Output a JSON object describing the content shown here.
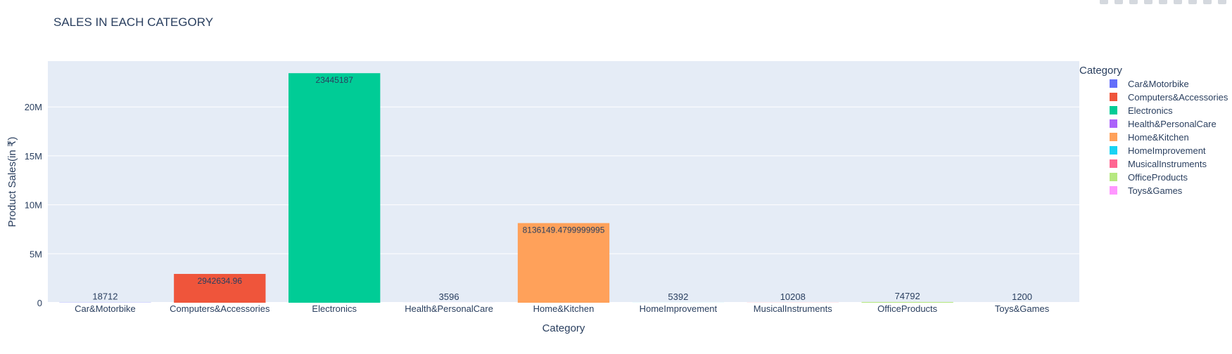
{
  "chart_data": {
    "type": "bar",
    "title": "SALES IN EACH CATEGORY",
    "xlabel": "Category",
    "ylabel": "Product Sales(in ₹)",
    "categories": [
      "Car&Motorbike",
      "Computers&Accessories",
      "Electronics",
      "Health&PersonalCare",
      "Home&Kitchen",
      "HomeImprovement",
      "MusicalInstruments",
      "OfficeProducts",
      "Toys&Games"
    ],
    "values": [
      18712,
      2942634.96,
      23445187,
      3596,
      8136149.4799999995,
      5392,
      10208,
      74792,
      1200
    ],
    "value_labels": [
      "18712",
      "2942634.96",
      "23445187",
      "3596",
      "8136149.4799999995",
      "5392",
      "10208",
      "74792",
      "1200"
    ],
    "colors": [
      "#636efa",
      "#EF553B",
      "#00cc96",
      "#ab63fa",
      "#FFA15A",
      "#19d3f3",
      "#FF6692",
      "#B6E880",
      "#FF97FF"
    ],
    "ylim": [
      0,
      24678670
    ],
    "yticks": [
      0,
      5000000,
      10000000,
      15000000,
      20000000
    ],
    "ytick_labels": [
      "0",
      "5M",
      "10M",
      "15M",
      "20M"
    ],
    "grid": true,
    "plot_background": "#e5ecf6",
    "legend": {
      "title": "Category",
      "placement": "right",
      "entries": [
        "Car&Motorbike",
        "Computers&Accessories",
        "Electronics",
        "Health&PersonalCare",
        "Home&Kitchen",
        "HomeImprovement",
        "MusicalInstruments",
        "OfficeProducts",
        "Toys&Games"
      ]
    }
  },
  "modebar": {
    "icons": [
      "camera-icon",
      "zoom-icon",
      "pan-icon",
      "box-select-icon",
      "lasso-select-icon",
      "zoom-in-icon",
      "zoom-out-icon",
      "autoscale-icon",
      "reset-axes-icon"
    ]
  }
}
